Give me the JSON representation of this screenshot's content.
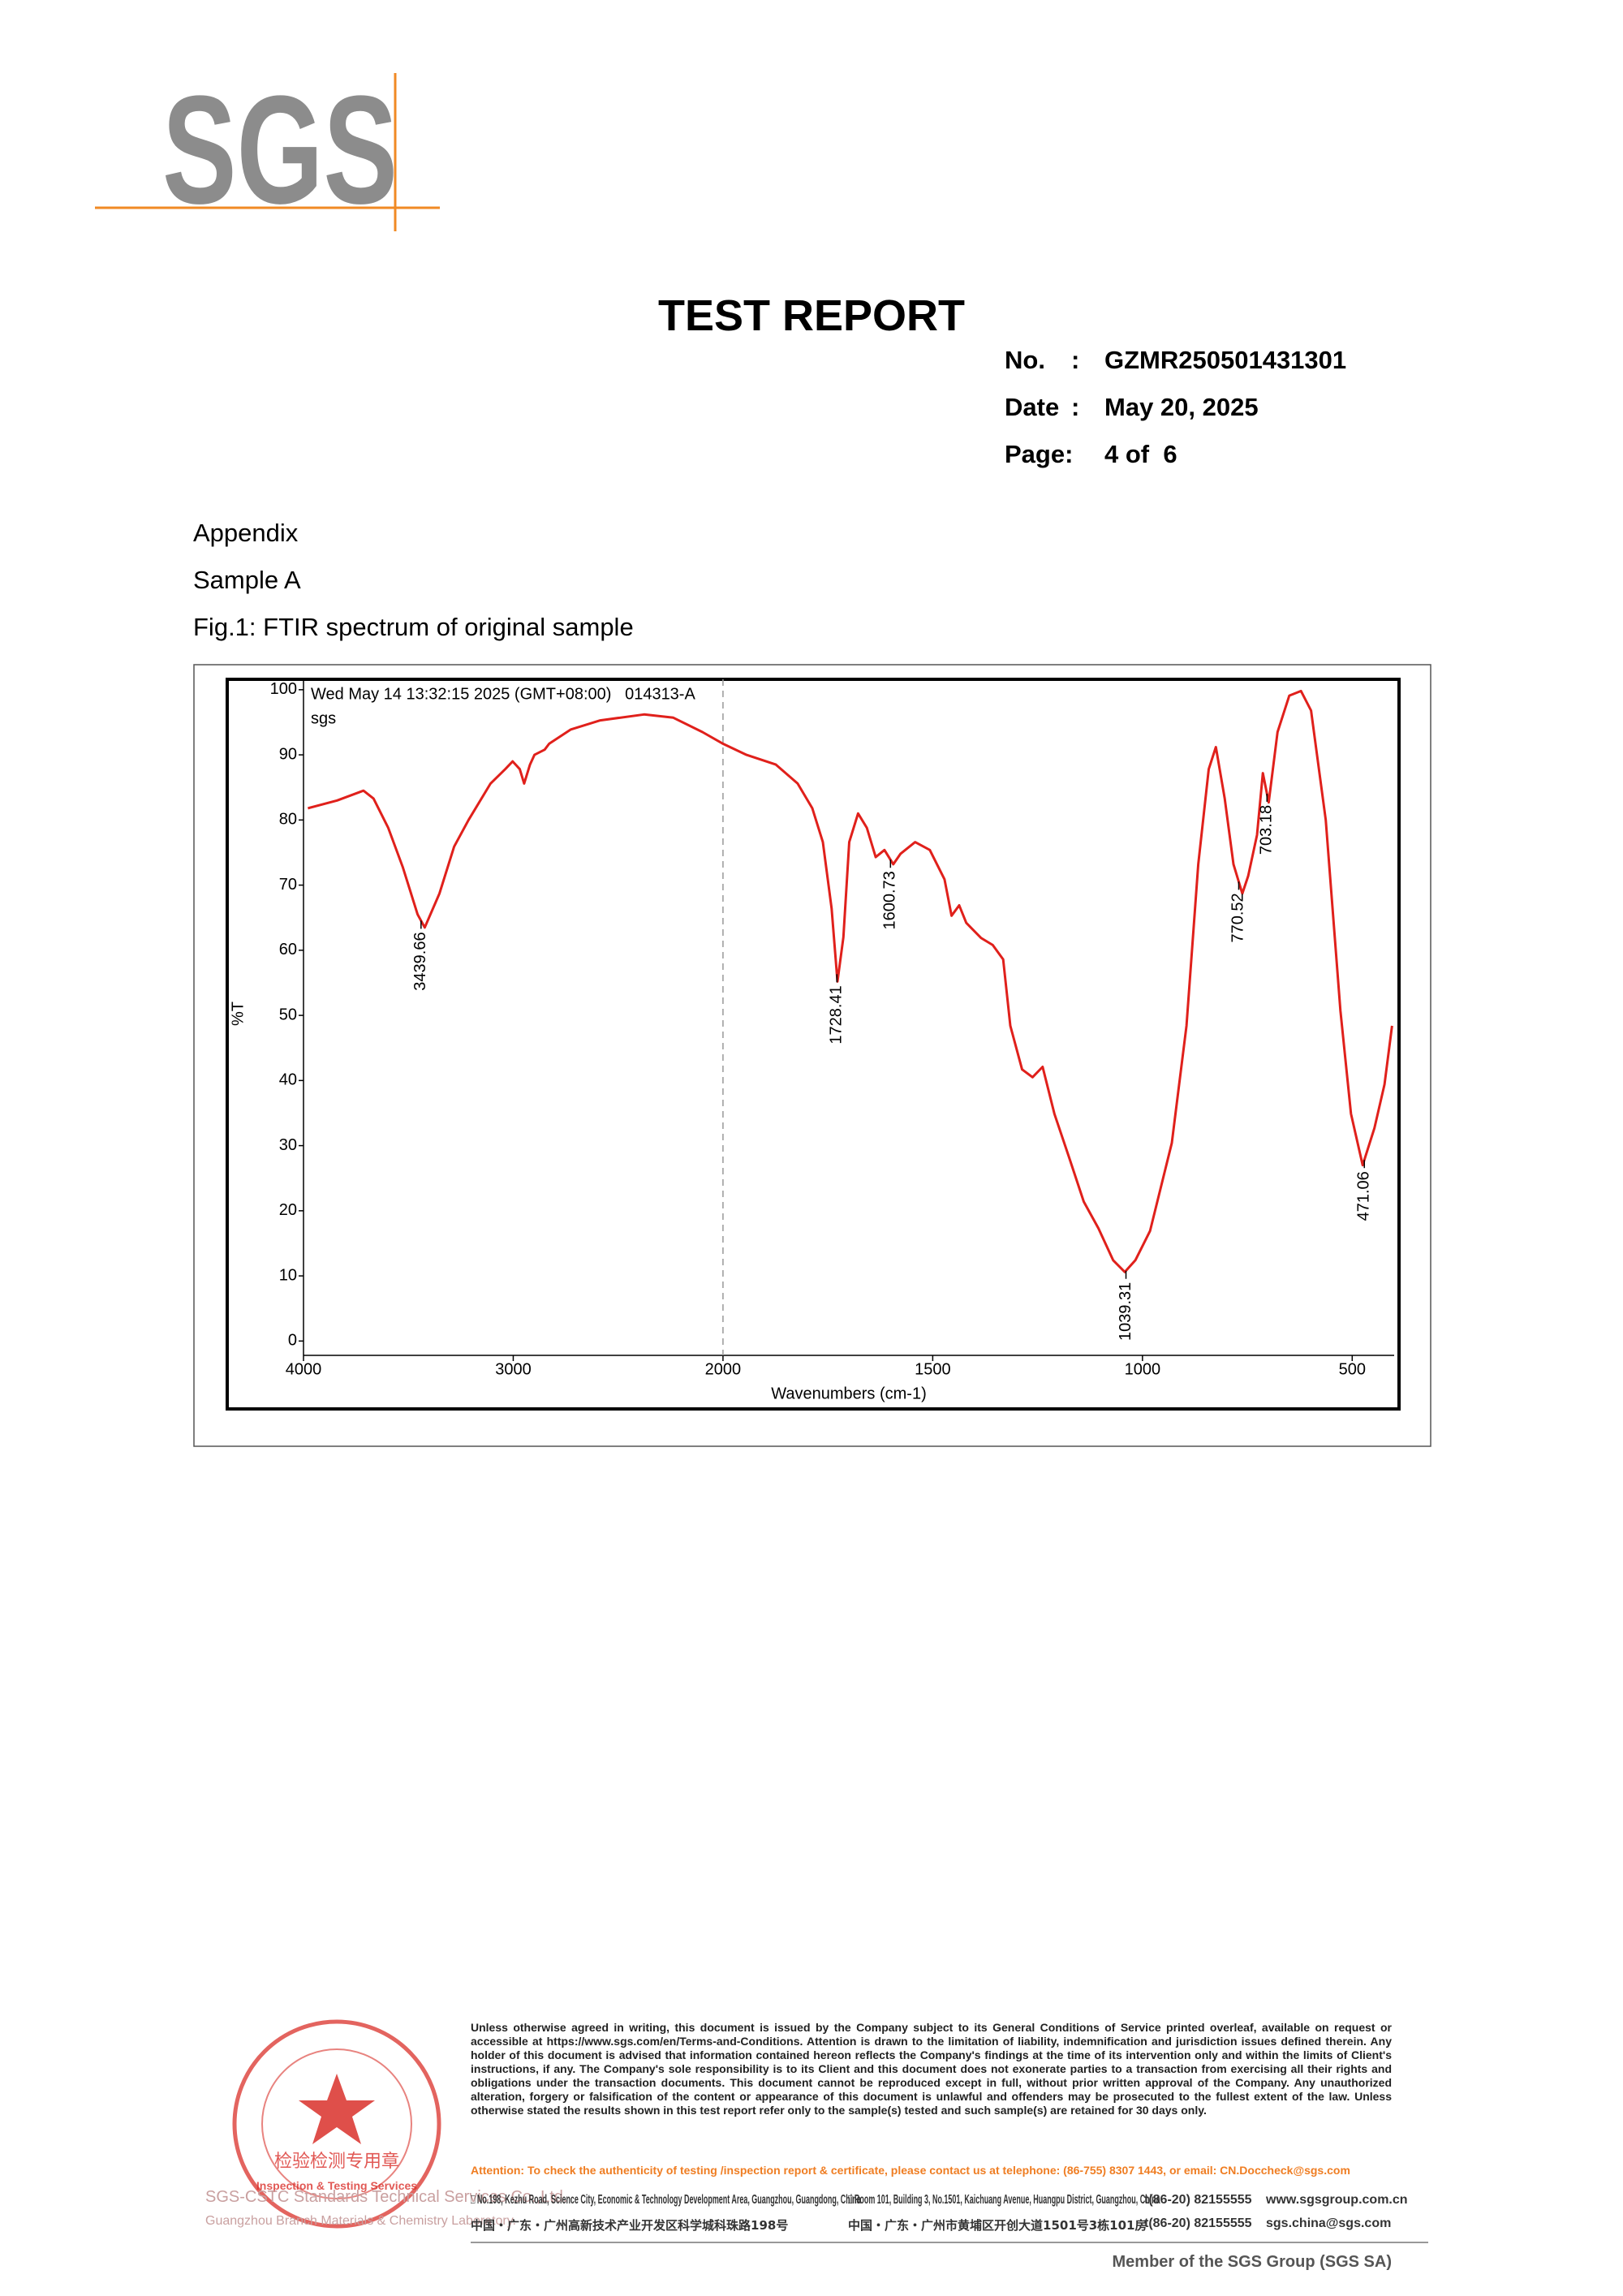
{
  "header": {
    "logo": "SGS",
    "title": "TEST REPORT",
    "fields": [
      {
        "label": "No.",
        "colon": ":",
        "value": "GZMR250501431301"
      },
      {
        "label": "Date",
        "colon": ":",
        "value": "May 20, 2025"
      },
      {
        "label": "Page:",
        "value": "4 of  6"
      }
    ]
  },
  "body": {
    "lines": [
      "Appendix",
      "Sample A",
      "Fig.1: FTIR spectrum of original sample"
    ]
  },
  "chart_data": {
    "type": "line",
    "title": "Wed May 14 13:32:15 2025 (GMT+08:00)   014313-A",
    "subtitle": "sgs",
    "x_label": "Wavenumbers (cm-1)",
    "y_label": "%T",
    "x": [
      3979,
      3840,
      3714,
      3666,
      3596,
      3526,
      3456,
      3422,
      3352,
      3282,
      3213,
      3108,
      3038,
      3003,
      2969,
      2948,
      2920,
      2899,
      2850,
      2829,
      2725,
      2585,
      2376,
      2237,
      2098,
      2000,
      1944,
      1874,
      1822,
      1787,
      1762,
      1741,
      1727,
      1713,
      1699,
      1678,
      1657,
      1636,
      1615,
      1594,
      1577,
      1542,
      1507,
      1472,
      1455,
      1437,
      1420,
      1385,
      1357,
      1332,
      1315,
      1287,
      1262,
      1238,
      1210,
      1175,
      1140,
      1105,
      1070,
      1042,
      1017,
      982,
      930,
      895,
      867,
      842,
      825,
      804,
      783,
      762,
      748,
      727,
      713,
      699,
      678,
      650,
      622,
      598,
      563,
      528,
      503,
      475,
      447,
      423,
      405
    ],
    "values": [
      81.8,
      83,
      84.5,
      83.3,
      78.8,
      72.7,
      65.5,
      63.5,
      68.7,
      75.9,
      80,
      85.6,
      87.8,
      89,
      87.8,
      85.6,
      88.5,
      90,
      90.8,
      91.7,
      93.9,
      95.3,
      96.2,
      95.7,
      93.5,
      91.7,
      90,
      88.5,
      85.6,
      81.8,
      76.6,
      66.4,
      55.2,
      62,
      76.6,
      81,
      78.8,
      74.3,
      75.4,
      73.2,
      74.8,
      76.6,
      75.4,
      70.9,
      65.3,
      66.9,
      64.2,
      61.9,
      60.8,
      58.6,
      48.4,
      41.7,
      40.5,
      42.1,
      34.9,
      28.2,
      21.4,
      17.3,
      12.4,
      10.6,
      12.4,
      16.9,
      30.4,
      48.4,
      73.2,
      87.8,
      91.2,
      83.3,
      73.2,
      68.7,
      71.4,
      77.7,
      87.2,
      82.7,
      93.5,
      99.1,
      99.8,
      96.8,
      80,
      50.7,
      34.9,
      27,
      32.7,
      39.4,
      48.4
    ],
    "color": "#e0201b",
    "peaks": [
      3439.66,
      1728.41,
      1600.73,
      1039.31,
      770.52,
      703.18,
      471.06
    ],
    "xlim": [
      4000,
      400
    ],
    "xticks": [
      4000,
      3000,
      2000,
      1500,
      1000,
      500
    ],
    "x_scale_break": 2000,
    "ylim": [
      -2.2,
      101.6
    ],
    "yticks": [
      0,
      10,
      20,
      30,
      40,
      50,
      60,
      70,
      80,
      90,
      100
    ],
    "grid": false
  },
  "footer": {
    "disclaimer": "Unless otherwise agreed in writing, this document is issued by the Company subject to its General Conditions of Service printed overleaf, available on request or accessible at https://www.sgs.com/en/Terms-and-Conditions. Attention is drawn to the limitation of liability, indemnification and jurisdiction issues defined therein. Any holder of this document is advised that information contained hereon reflects the Company's findings at the time of its intervention only and within the limits of Client's instructions, if any. The Company's sole responsibility is to its Client and this document does not exonerate parties to a transaction from exercising all their rights and obligations under the transaction documents. This document cannot be reproduced except in full, without prior written approval of the Company. Any unauthorized alteration, forgery or falsification of the content or appearance of this document is unlawful and offenders may be prosecuted to the fullest extent of the law. Unless otherwise stated the results shown in this test report refer only to the sample(s) tested and such sample(s) are retained for 30 days only.",
    "attention": "Attention: To check the authenticity of testing /inspection report & certificate, please contact us at telephone: (86-755) 8307 1443, or email: CN.Doccheck@sgs.com",
    "addresses": [
      [
        "□ No.198, Kezhu Road, Science City, Economic & Technology Development Area, Guangzhou, Guangdong, China",
        "□ Room 101, Building 3, No.1501, Kaichuang Avenue, Huangpu District, Guangzhou, China",
        "t(86-20) 82155555",
        "www.sgsgroup.com.cn"
      ],
      [
        "中国・广东・广州高新技术产业开发区科学城科珠路198号",
        "中国・广东・广州市黄埔区开创大道1501号3栋101房",
        "t(86-20) 82155555",
        "sgs.china@sgs.com"
      ]
    ],
    "stamp": [
      "检验检测专用章",
      "Inspection & Testing Services"
    ],
    "company": [
      "SGS-CSTC Standards Technical Services Co.,Ltd.",
      "Guangzhou Branch Materials & Chemistry Laboratory."
    ],
    "member": "Member of the SGS Group (SGS SA)"
  }
}
